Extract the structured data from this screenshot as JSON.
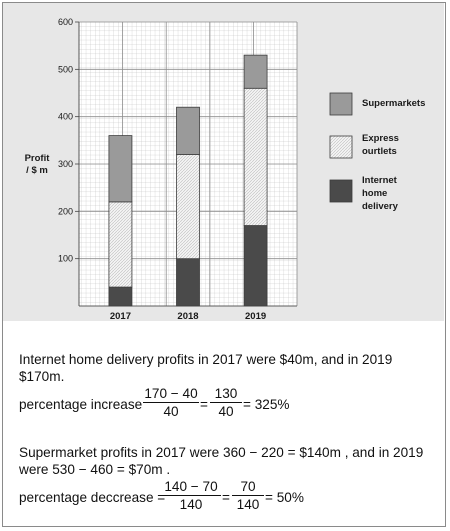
{
  "chart_data": {
    "type": "bar",
    "stacked": true,
    "categories": [
      "2017",
      "2018",
      "2019"
    ],
    "series": [
      {
        "name": "Internet home delivery",
        "values": [
          40,
          100,
          170
        ],
        "color": "#4a4a4a",
        "fill": "solid-dark"
      },
      {
        "name": "Express ourtlets",
        "values": [
          180,
          220,
          290
        ],
        "color": "#efefef",
        "fill": "hatched-light"
      },
      {
        "name": "Supermarkets",
        "values": [
          140,
          100,
          70
        ],
        "color": "#9a9a9a",
        "fill": "solid-grey"
      }
    ],
    "legend": [
      {
        "lines": [
          "Supermarkets"
        ],
        "color": "#9a9a9a"
      },
      {
        "lines": [
          "Express",
          "ourtlets"
        ],
        "color": "#efefef"
      },
      {
        "lines": [
          "Internet",
          "home",
          "delivery"
        ],
        "color": "#4a4a4a"
      }
    ],
    "ylabel_lines": [
      "Profit",
      "/ $ m"
    ],
    "xlabel": "",
    "ylim": [
      0,
      600
    ],
    "yticks": [
      "100",
      "200",
      "300",
      "400",
      "500",
      "600"
    ],
    "grid": true,
    "legend_position": "right"
  },
  "text": {
    "para1_line1": "Internet home delivery profits in 2017 were $40m, and in 2019",
    "para1_line2": "$170m.",
    "eq1_prefix": "percentage increase",
    "eq1_frac1_num": "170 − 40",
    "eq1_frac1_den": "40",
    "eq1_equals1": "=",
    "eq1_frac2_num": "130",
    "eq1_frac2_den": "40",
    "eq1_result": "= 325%",
    "para2_line1": "Supermarket profits in 2017 were  360 − 220 = $140m , and in 2019",
    "para2_line2": "were  530 − 460 = $70m .",
    "eq2_prefix": "percentage deccrease =",
    "eq2_frac1_num": "140 − 70",
    "eq2_frac1_den": "140",
    "eq2_equals1": "=",
    "eq2_frac2_num": "70",
    "eq2_frac2_den": "140",
    "eq2_result": "= 50%"
  }
}
